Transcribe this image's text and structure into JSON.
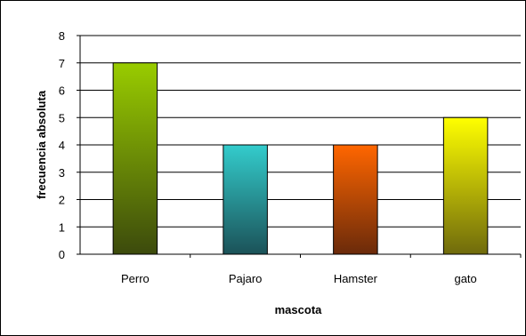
{
  "chart_data": {
    "type": "bar",
    "title": "",
    "xlabel": "mascota",
    "ylabel": "frecuencia absoluta",
    "categories": [
      "Perro",
      "Pajaro",
      "Hamster",
      "gato"
    ],
    "values": [
      7,
      4,
      4,
      5
    ],
    "ylim": [
      0,
      8
    ],
    "yticks": [
      "0",
      "1",
      "2",
      "3",
      "4",
      "5",
      "6",
      "7",
      "8"
    ],
    "grid": true,
    "legend": "none",
    "bar_colors": [
      {
        "top": "#99CC00",
        "bottom": "#3C4A0C"
      },
      {
        "top": "#33CCCC",
        "bottom": "#1B5258"
      },
      {
        "top": "#FF6600",
        "bottom": "#6A2A0A"
      },
      {
        "top": "#FFFF00",
        "bottom": "#6F6A0C"
      }
    ]
  }
}
